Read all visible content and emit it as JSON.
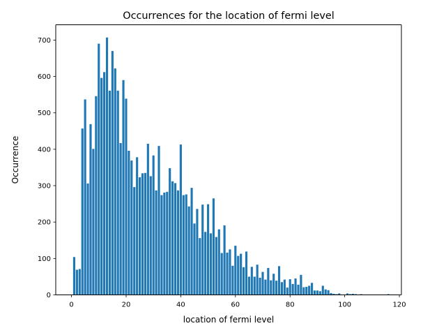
{
  "chart_data": {
    "type": "bar",
    "title": "Occurrences for the location of fermi level",
    "xlabel": "location of fermi level",
    "ylabel": "Occurrence",
    "xlim": [
      -5.75,
      120.75
    ],
    "ylim": [
      0,
      742
    ],
    "xticks": [
      0,
      20,
      40,
      60,
      80,
      100,
      120
    ],
    "yticks": [
      0,
      100,
      200,
      300,
      400,
      500,
      600,
      700
    ],
    "bar_width": 0.8,
    "bar_color": "#1f77b4",
    "grid": false,
    "legend": "none",
    "x": [
      1,
      2,
      3,
      4,
      5,
      6,
      7,
      8,
      9,
      10,
      11,
      12,
      13,
      14,
      15,
      16,
      17,
      18,
      19,
      20,
      21,
      22,
      23,
      24,
      25,
      26,
      27,
      28,
      29,
      30,
      31,
      32,
      33,
      34,
      35,
      36,
      37,
      38,
      39,
      40,
      41,
      42,
      43,
      44,
      45,
      46,
      47,
      48,
      49,
      50,
      51,
      52,
      53,
      54,
      55,
      56,
      57,
      58,
      59,
      60,
      61,
      62,
      63,
      64,
      65,
      66,
      67,
      68,
      69,
      70,
      71,
      72,
      73,
      74,
      75,
      76,
      77,
      78,
      79,
      80,
      81,
      82,
      83,
      84,
      85,
      86,
      87,
      88,
      89,
      90,
      91,
      92,
      93,
      94,
      95,
      96,
      97,
      98,
      99,
      100,
      101,
      102,
      103,
      104,
      105,
      106,
      107,
      108,
      109,
      110,
      111,
      112,
      113,
      114,
      115,
      116
    ],
    "values": [
      104,
      69,
      71,
      457,
      537,
      306,
      469,
      401,
      546,
      690,
      596,
      612,
      707,
      561,
      670,
      622,
      561,
      417,
      590,
      539,
      396,
      369,
      296,
      378,
      323,
      334,
      335,
      415,
      326,
      383,
      287,
      409,
      274,
      281,
      283,
      348,
      312,
      307,
      287,
      413,
      274,
      276,
      243,
      294,
      196,
      236,
      156,
      248,
      173,
      249,
      169,
      265,
      159,
      180,
      115,
      191,
      116,
      125,
      80,
      135,
      107,
      113,
      76,
      119,
      50,
      77,
      50,
      83,
      47,
      63,
      42,
      74,
      40,
      58,
      39,
      79,
      35,
      42,
      20,
      43,
      30,
      45,
      28,
      55,
      21,
      22,
      25,
      33,
      12,
      12,
      10,
      25,
      15,
      13,
      5,
      3,
      2,
      4,
      1,
      0,
      4,
      2,
      3,
      2,
      1,
      2,
      0,
      0,
      0,
      0,
      0,
      0,
      0,
      0,
      1,
      2
    ]
  }
}
